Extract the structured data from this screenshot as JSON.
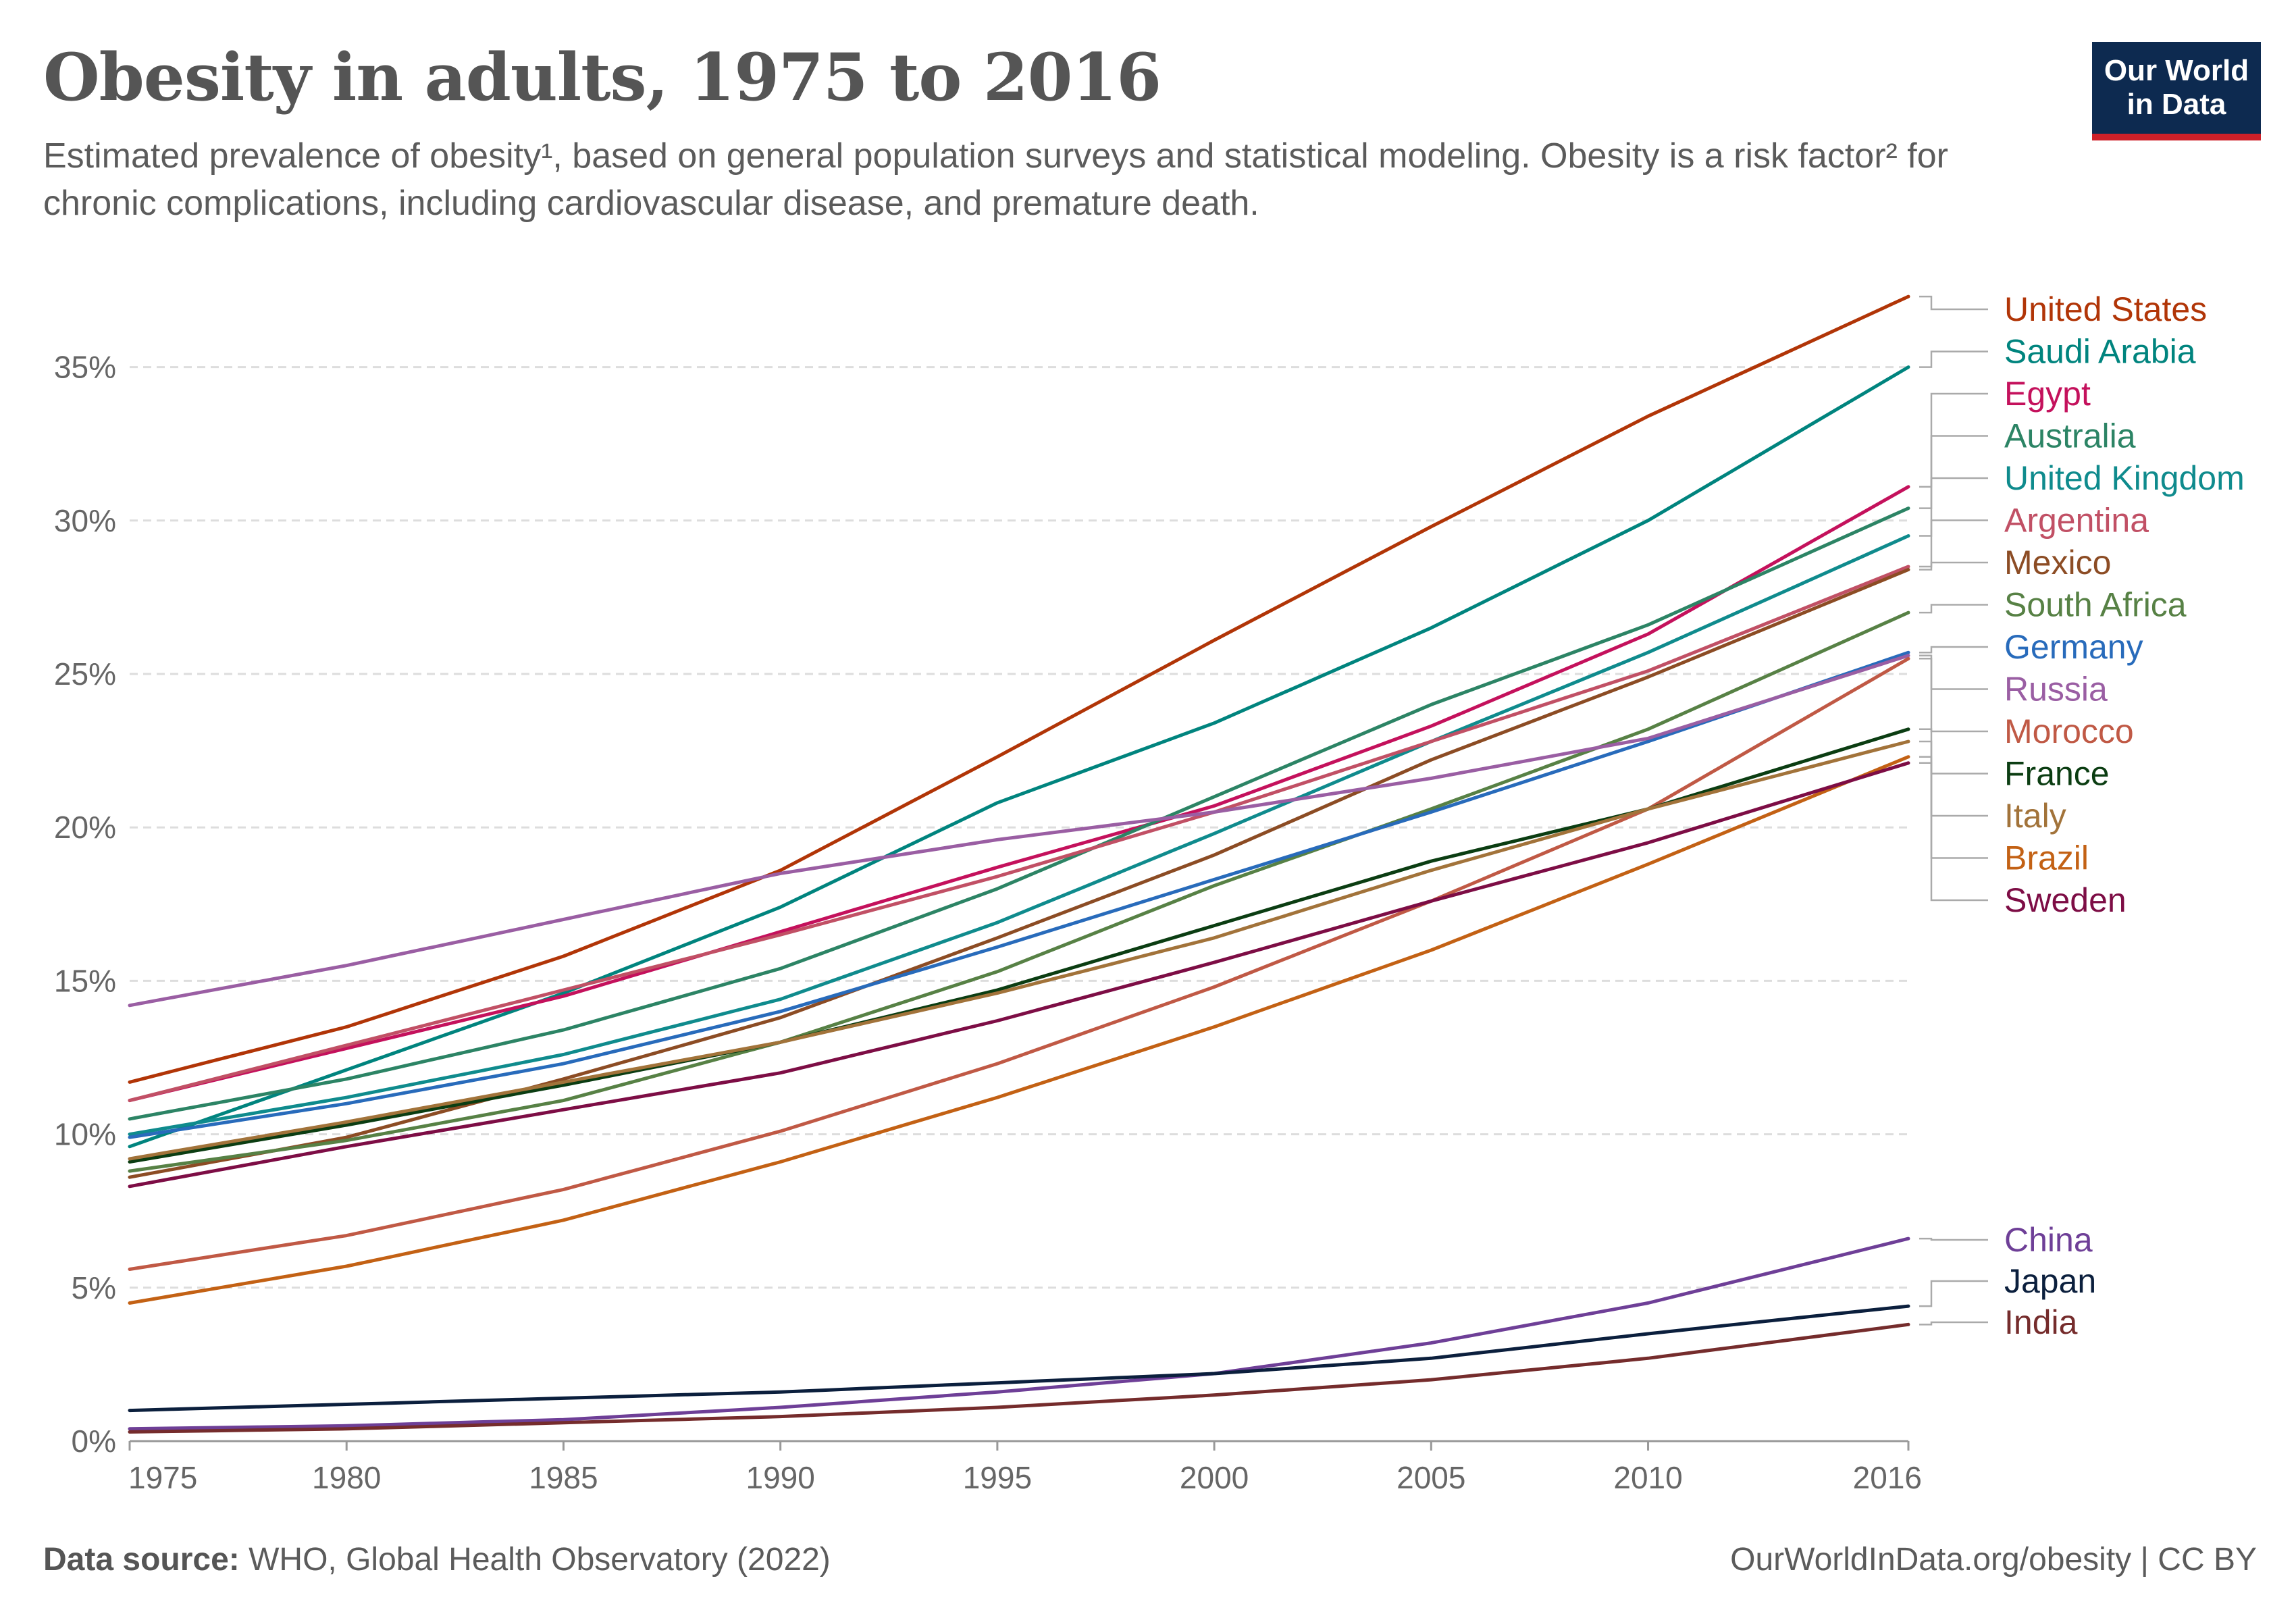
{
  "header": {
    "title": "Obesity in adults, 1975 to 2016",
    "subtitle": "Estimated prevalence of obesity¹, based on general population surveys and statistical modeling. Obesity is a risk factor² for chronic complications, including cardiovascular disease, and premature death."
  },
  "logo": {
    "line1": "Our World",
    "line2": "in Data",
    "bg_color": "#0d2a50",
    "accent_color": "#ce2029"
  },
  "footer": {
    "source_label": "Data source:",
    "source_text": "WHO, Global Health Observatory (2022)",
    "credit": "OurWorldInData.org/obesity | CC BY"
  },
  "chart_data": {
    "type": "line",
    "title": "Obesity in adults, 1975 to 2016",
    "xlabel": "",
    "ylabel": "",
    "xlim": [
      1975,
      2016
    ],
    "ylim": [
      0,
      37.5
    ],
    "y_ticks": [
      0,
      5,
      10,
      15,
      20,
      25,
      30,
      35
    ],
    "y_tick_labels": [
      "0%",
      "5%",
      "10%",
      "15%",
      "20%",
      "25%",
      "30%",
      "35%"
    ],
    "x_ticks": [
      1975,
      1980,
      1985,
      1990,
      1995,
      2000,
      2005,
      2010,
      2016
    ],
    "x_tick_labels": [
      "1975",
      "1980",
      "1985",
      "1990",
      "1995",
      "2000",
      "2005",
      "2010",
      "2016"
    ],
    "grid": "horizontal dashed",
    "legend": "right, labels at line ends",
    "series": [
      {
        "name": "United States",
        "color": "#b13507",
        "values": [
          [
            1975,
            11.7
          ],
          [
            1980,
            13.5
          ],
          [
            1985,
            15.8
          ],
          [
            1990,
            18.6
          ],
          [
            1995,
            22.3
          ],
          [
            2000,
            26.1
          ],
          [
            2005,
            29.8
          ],
          [
            2010,
            33.4
          ],
          [
            2016,
            37.3
          ]
        ]
      },
      {
        "name": "Saudi Arabia",
        "color": "#00847e",
        "values": [
          [
            1975,
            9.6
          ],
          [
            1980,
            12.1
          ],
          [
            1985,
            14.6
          ],
          [
            1990,
            17.4
          ],
          [
            1995,
            20.8
          ],
          [
            2000,
            23.4
          ],
          [
            2005,
            26.5
          ],
          [
            2010,
            30.0
          ],
          [
            2016,
            35.0
          ]
        ]
      },
      {
        "name": "Egypt",
        "color": "#c4115c",
        "values": [
          [
            1975,
            11.1
          ],
          [
            1980,
            12.8
          ],
          [
            1985,
            14.5
          ],
          [
            1990,
            16.6
          ],
          [
            1995,
            18.7
          ],
          [
            2000,
            20.7
          ],
          [
            2005,
            23.3
          ],
          [
            2010,
            26.3
          ],
          [
            2016,
            31.1
          ]
        ]
      },
      {
        "name": "Australia",
        "color": "#2c8465",
        "values": [
          [
            1975,
            10.5
          ],
          [
            1980,
            11.8
          ],
          [
            1985,
            13.4
          ],
          [
            1990,
            15.4
          ],
          [
            1995,
            18.0
          ],
          [
            2000,
            21.0
          ],
          [
            2005,
            24.0
          ],
          [
            2010,
            26.6
          ],
          [
            2016,
            30.4
          ]
        ]
      },
      {
        "name": "United Kingdom",
        "color": "#0f8b8d",
        "values": [
          [
            1975,
            10.0
          ],
          [
            1980,
            11.2
          ],
          [
            1985,
            12.6
          ],
          [
            1990,
            14.4
          ],
          [
            1995,
            16.9
          ],
          [
            2000,
            19.8
          ],
          [
            2005,
            22.8
          ],
          [
            2010,
            25.7
          ],
          [
            2016,
            29.5
          ]
        ]
      },
      {
        "name": "Argentina",
        "color": "#c15065",
        "values": [
          [
            1975,
            11.1
          ],
          [
            1980,
            12.9
          ],
          [
            1985,
            14.7
          ],
          [
            1990,
            16.5
          ],
          [
            1995,
            18.4
          ],
          [
            2000,
            20.5
          ],
          [
            2005,
            22.8
          ],
          [
            2010,
            25.1
          ],
          [
            2016,
            28.5
          ]
        ]
      },
      {
        "name": "Mexico",
        "color": "#8c4c24",
        "values": [
          [
            1975,
            8.6
          ],
          [
            1980,
            9.9
          ],
          [
            1985,
            11.8
          ],
          [
            1990,
            13.8
          ],
          [
            1995,
            16.4
          ],
          [
            2000,
            19.1
          ],
          [
            2005,
            22.2
          ],
          [
            2010,
            24.9
          ],
          [
            2016,
            28.4
          ]
        ]
      },
      {
        "name": "South Africa",
        "color": "#578145",
        "values": [
          [
            1975,
            8.8
          ],
          [
            1980,
            9.8
          ],
          [
            1985,
            11.1
          ],
          [
            1990,
            13.0
          ],
          [
            1995,
            15.3
          ],
          [
            2000,
            18.1
          ],
          [
            2005,
            20.6
          ],
          [
            2010,
            23.2
          ],
          [
            2016,
            27.0
          ]
        ]
      },
      {
        "name": "Germany",
        "color": "#286bbb",
        "values": [
          [
            1975,
            9.9
          ],
          [
            1980,
            11.0
          ],
          [
            1985,
            12.3
          ],
          [
            1990,
            14.0
          ],
          [
            1995,
            16.1
          ],
          [
            2000,
            18.3
          ],
          [
            2005,
            20.5
          ],
          [
            2010,
            22.8
          ],
          [
            2016,
            25.7
          ]
        ]
      },
      {
        "name": "Russia",
        "color": "#9a5ea3",
        "values": [
          [
            1975,
            14.2
          ],
          [
            1980,
            15.5
          ],
          [
            1985,
            17.0
          ],
          [
            1990,
            18.5
          ],
          [
            1995,
            19.6
          ],
          [
            2000,
            20.5
          ],
          [
            2005,
            21.6
          ],
          [
            2010,
            22.9
          ],
          [
            2016,
            25.6
          ]
        ]
      },
      {
        "name": "Morocco",
        "color": "#c05945",
        "values": [
          [
            1975,
            5.6
          ],
          [
            1980,
            6.7
          ],
          [
            1985,
            8.2
          ],
          [
            1990,
            10.1
          ],
          [
            1995,
            12.3
          ],
          [
            2000,
            14.8
          ],
          [
            2005,
            17.6
          ],
          [
            2010,
            20.6
          ],
          [
            2016,
            25.5
          ]
        ]
      },
      {
        "name": "France",
        "color": "#0b3d12",
        "values": [
          [
            1975,
            9.1
          ],
          [
            1980,
            10.3
          ],
          [
            1985,
            11.6
          ],
          [
            1990,
            13.0
          ],
          [
            1995,
            14.7
          ],
          [
            2000,
            16.8
          ],
          [
            2005,
            18.9
          ],
          [
            2010,
            20.6
          ],
          [
            2016,
            23.2
          ]
        ]
      },
      {
        "name": "Italy",
        "color": "#a2733a",
        "values": [
          [
            1975,
            9.2
          ],
          [
            1980,
            10.4
          ],
          [
            1985,
            11.7
          ],
          [
            1990,
            13.0
          ],
          [
            1995,
            14.6
          ],
          [
            2000,
            16.4
          ],
          [
            2005,
            18.6
          ],
          [
            2010,
            20.6
          ],
          [
            2016,
            22.8
          ]
        ]
      },
      {
        "name": "Brazil",
        "color": "#c36114",
        "values": [
          [
            1975,
            4.5
          ],
          [
            1980,
            5.7
          ],
          [
            1985,
            7.2
          ],
          [
            1990,
            9.1
          ],
          [
            1995,
            11.2
          ],
          [
            2000,
            13.5
          ],
          [
            2005,
            16.0
          ],
          [
            2010,
            18.8
          ],
          [
            2016,
            22.3
          ]
        ]
      },
      {
        "name": "Sweden",
        "color": "#7d0d45",
        "values": [
          [
            1975,
            8.3
          ],
          [
            1980,
            9.6
          ],
          [
            1985,
            10.8
          ],
          [
            1990,
            12.0
          ],
          [
            1995,
            13.7
          ],
          [
            2000,
            15.6
          ],
          [
            2005,
            17.6
          ],
          [
            2010,
            19.5
          ],
          [
            2016,
            22.1
          ]
        ]
      },
      {
        "name": "China",
        "color": "#6e3f97",
        "values": [
          [
            1975,
            0.4
          ],
          [
            1980,
            0.5
          ],
          [
            1985,
            0.7
          ],
          [
            1990,
            1.1
          ],
          [
            1995,
            1.6
          ],
          [
            2000,
            2.2
          ],
          [
            2005,
            3.2
          ],
          [
            2010,
            4.5
          ],
          [
            2016,
            6.6
          ]
        ]
      },
      {
        "name": "Japan",
        "color": "#0b1f3d",
        "values": [
          [
            1975,
            1.0
          ],
          [
            1980,
            1.2
          ],
          [
            1985,
            1.4
          ],
          [
            1990,
            1.6
          ],
          [
            1995,
            1.9
          ],
          [
            2000,
            2.2
          ],
          [
            2005,
            2.7
          ],
          [
            2010,
            3.5
          ],
          [
            2016,
            4.4
          ]
        ]
      },
      {
        "name": "India",
        "color": "#752c2c",
        "values": [
          [
            1975,
            0.3
          ],
          [
            1980,
            0.4
          ],
          [
            1985,
            0.6
          ],
          [
            1990,
            0.8
          ],
          [
            1995,
            1.1
          ],
          [
            2000,
            1.5
          ],
          [
            2005,
            2.0
          ],
          [
            2010,
            2.7
          ],
          [
            2016,
            3.8
          ]
        ]
      }
    ]
  }
}
